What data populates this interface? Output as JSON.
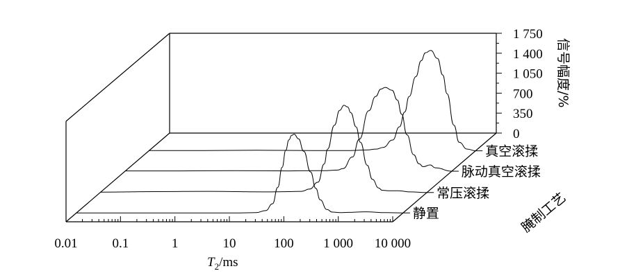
{
  "chart_data": {
    "type": "line",
    "projection": "3d-waterfall",
    "xlabel_main": "T",
    "xlabel_sub": "2",
    "xlabel_unit": "/ms",
    "x_scale": "log",
    "x_ticks": [
      {
        "value": 0.01,
        "label": "0.01"
      },
      {
        "value": 0.1,
        "label": "0.1"
      },
      {
        "value": 1,
        "label": "1"
      },
      {
        "value": 10,
        "label": "10"
      },
      {
        "value": 100,
        "label": "100"
      },
      {
        "value": 1000,
        "label": "1 000"
      },
      {
        "value": 10000,
        "label": "10 000"
      }
    ],
    "ylabel": "信号幅度/%",
    "y_ticks": [
      {
        "value": 0,
        "label": "0"
      },
      {
        "value": 350,
        "label": "350"
      },
      {
        "value": 700,
        "label": "700"
      },
      {
        "value": 1050,
        "label": "1 050"
      },
      {
        "value": 1400,
        "label": "1 400"
      },
      {
        "value": 1750,
        "label": "1 750"
      }
    ],
    "ylim": [
      0,
      1750
    ],
    "zlabel": "腌制工艺",
    "series": [
      {
        "name": "静置",
        "x": [
          0.01,
          0.1,
          1,
          10,
          20,
          30,
          40,
          50,
          60,
          70,
          80,
          90,
          100,
          120,
          150,
          200,
          250,
          300,
          400,
          500,
          700,
          1000,
          2000,
          5000,
          10000
        ],
        "y": [
          0,
          0,
          0,
          0,
          5,
          40,
          160,
          450,
          800,
          1100,
          1280,
          1360,
          1380,
          1300,
          1080,
          720,
          430,
          230,
          60,
          15,
          5,
          10,
          20,
          5,
          0
        ]
      },
      {
        "name": "常压滚揉",
        "x": [
          0.01,
          0.1,
          1,
          10,
          30,
          50,
          70,
          100,
          130,
          150,
          200,
          250,
          300,
          350,
          400,
          500,
          600,
          800,
          1000,
          1300,
          1500,
          2000,
          3000,
          5000,
          10000
        ],
        "y": [
          5,
          15,
          20,
          10,
          15,
          20,
          60,
          180,
          500,
          760,
          1180,
          1440,
          1530,
          1500,
          1400,
          1150,
          880,
          480,
          230,
          80,
          40,
          30,
          30,
          10,
          0
        ]
      },
      {
        "name": "脉动真空滚揉",
        "x": [
          0.01,
          0.1,
          1,
          10,
          30,
          50,
          80,
          100,
          150,
          200,
          300,
          400,
          500,
          600,
          800,
          1000,
          1200,
          1500,
          2000,
          2500,
          3000,
          4000,
          5000,
          10000
        ],
        "y": [
          5,
          5,
          10,
          5,
          10,
          10,
          20,
          45,
          250,
          560,
          1060,
          1310,
          1440,
          1470,
          1420,
          1250,
          1000,
          640,
          290,
          130,
          80,
          110,
          60,
          0
        ]
      },
      {
        "name": "真空滚揉",
        "x": [
          0.01,
          0.1,
          1,
          10,
          50,
          100,
          150,
          200,
          300,
          400,
          500,
          600,
          800,
          1000,
          1200,
          1500,
          2000,
          2500,
          3000,
          4000,
          5000,
          7000,
          10000
        ],
        "y": [
          5,
          5,
          10,
          5,
          5,
          15,
          30,
          60,
          190,
          420,
          680,
          950,
          1300,
          1580,
          1720,
          1760,
          1620,
          1330,
          1000,
          450,
          150,
          30,
          0
        ]
      }
    ]
  }
}
